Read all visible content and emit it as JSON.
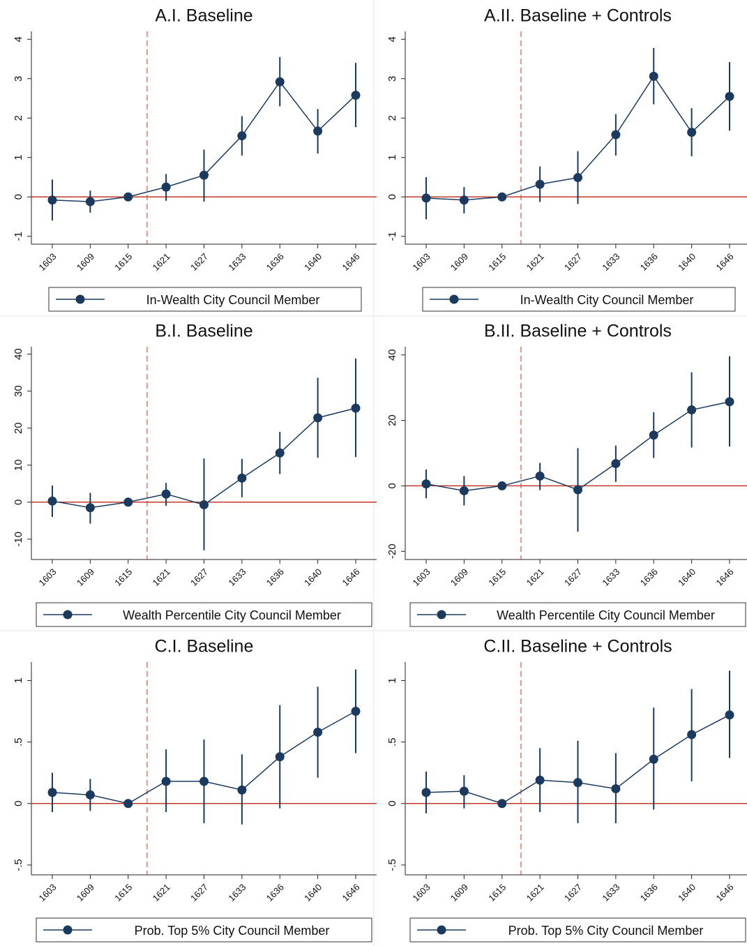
{
  "chart_data": [
    {
      "type": "line",
      "title": "A.I. Baseline",
      "categories": [
        "1603",
        "1609",
        "1615",
        "1621",
        "1627",
        "1633",
        "1636",
        "1640",
        "1646"
      ],
      "series": [
        {
          "name": "In-Wealth City Council Member",
          "color": "#1b3a5e",
          "values": [
            -0.08,
            -0.12,
            0,
            0.25,
            0.55,
            1.55,
            2.92,
            1.67,
            2.58
          ],
          "ci_low": [
            -0.6,
            -0.4,
            0,
            -0.1,
            -0.12,
            1.05,
            2.3,
            1.1,
            1.77
          ],
          "ci_high": [
            0.44,
            0.16,
            0,
            0.58,
            1.2,
            2.05,
            3.55,
            2.23,
            3.4
          ]
        }
      ],
      "ylim": [
        -1.2,
        4.2
      ],
      "yticks": [
        -1,
        0,
        1,
        2,
        3,
        4
      ],
      "hline": 0,
      "hline_color": "#c0392b"
    },
    {
      "type": "line",
      "title": "A.II. Baseline + Controls",
      "categories": [
        "1603",
        "1609",
        "1615",
        "1621",
        "1627",
        "1633",
        "1636",
        "1640",
        "1646"
      ],
      "series": [
        {
          "name": "In-Wealth City Council Member",
          "color": "#1b3a5e",
          "values": [
            -0.03,
            -0.08,
            0,
            0.32,
            0.49,
            1.58,
            3.06,
            1.64,
            2.55
          ],
          "ci_low": [
            -0.57,
            -0.42,
            0,
            -0.13,
            -0.18,
            1.05,
            2.35,
            1.03,
            1.68
          ],
          "ci_high": [
            0.5,
            0.25,
            0,
            0.77,
            1.16,
            2.1,
            3.78,
            2.25,
            3.42
          ]
        }
      ],
      "ylim": [
        -1.2,
        4.2
      ],
      "yticks": [
        -1,
        0,
        1,
        2,
        3,
        4
      ],
      "hline": 0,
      "hline_color": "#c0392b"
    },
    {
      "type": "line",
      "title": "B.I. Baseline",
      "categories": [
        "1603",
        "1609",
        "1615",
        "1621",
        "1627",
        "1633",
        "1636",
        "1640",
        "1646"
      ],
      "series": [
        {
          "name": "Wealth Percentile City Council Member",
          "color": "#1b3a5e",
          "values": [
            0.3,
            -1.5,
            0,
            2.2,
            -0.7,
            6.5,
            13.3,
            22.8,
            25.4
          ],
          "ci_low": [
            -4,
            -5.8,
            0,
            -1,
            -13,
            1.3,
            7.6,
            12,
            12.2
          ],
          "ci_high": [
            4.5,
            2.5,
            0,
            5.2,
            11.8,
            11.7,
            19,
            33.6,
            38.8
          ]
        }
      ],
      "ylim": [
        -15.5,
        42
      ],
      "yticks": [
        -10,
        0,
        10,
        20,
        30,
        40
      ],
      "hline": 0,
      "hline_color": "#c0392b"
    },
    {
      "type": "line",
      "title": "B.II. Baseline + Controls",
      "categories": [
        "1603",
        "1609",
        "1615",
        "1621",
        "1627",
        "1633",
        "1636",
        "1640",
        "1646"
      ],
      "series": [
        {
          "name": "Wealth Percentile City Council Member",
          "color": "#1b3a5e",
          "values": [
            0.6,
            -1.5,
            0,
            3,
            -1.2,
            6.8,
            15.5,
            23.2,
            25.7
          ],
          "ci_low": [
            -3.8,
            -6,
            0,
            -1.3,
            -14,
            1.2,
            8.5,
            11.7,
            12
          ],
          "ci_high": [
            5,
            3,
            0,
            7,
            11.5,
            12.3,
            22.5,
            34.7,
            39.6
          ]
        }
      ],
      "ylim": [
        -22.5,
        42.5
      ],
      "yticks": [
        -20,
        0,
        20,
        40
      ],
      "hline": 0,
      "hline_color": "#c0392b"
    },
    {
      "type": "line",
      "title": "C.I. Baseline",
      "categories": [
        "1603",
        "1609",
        "1615",
        "1621",
        "1627",
        "1633",
        "1636",
        "1640",
        "1646"
      ],
      "series": [
        {
          "name": "Prob. Top 5% City Council Member",
          "color": "#1b3a5e",
          "values": [
            0.09,
            0.07,
            0,
            0.18,
            0.18,
            0.11,
            0.38,
            0.58,
            0.75
          ],
          "ci_low": [
            -0.07,
            -0.06,
            0,
            -0.07,
            -0.16,
            -0.17,
            -0.04,
            0.21,
            0.41
          ],
          "ci_high": [
            0.25,
            0.2,
            0,
            0.44,
            0.52,
            0.4,
            0.8,
            0.95,
            1.09
          ]
        }
      ],
      "ylim": [
        -0.58,
        1.15
      ],
      "yticks": [
        {
          "value": -0.5,
          "label": "-.5"
        },
        0,
        {
          "value": 0.5,
          "label": ".5"
        },
        1
      ],
      "hline": 0,
      "hline_color": "#c0392b"
    },
    {
      "type": "line",
      "title": "C.II. Baseline + Controls",
      "categories": [
        "1603",
        "1609",
        "1615",
        "1621",
        "1627",
        "1633",
        "1636",
        "1640",
        "1646"
      ],
      "series": [
        {
          "name": "Prob. Top 5% City Council Member",
          "color": "#1b3a5e",
          "values": [
            0.09,
            0.1,
            0,
            0.19,
            0.17,
            0.12,
            0.36,
            0.56,
            0.72
          ],
          "ci_low": [
            -0.08,
            -0.04,
            0,
            -0.07,
            -0.16,
            -0.16,
            -0.05,
            0.18,
            0.37
          ],
          "ci_high": [
            0.26,
            0.23,
            0,
            0.45,
            0.51,
            0.41,
            0.78,
            0.93,
            1.08
          ]
        }
      ],
      "ylim": [
        -0.58,
        1.15
      ],
      "yticks": [
        {
          "value": -0.5,
          "label": "-.5"
        },
        0,
        {
          "value": 0.5,
          "label": ".5"
        },
        1
      ],
      "hline": 0,
      "hline_color": "#c0392b"
    }
  ]
}
